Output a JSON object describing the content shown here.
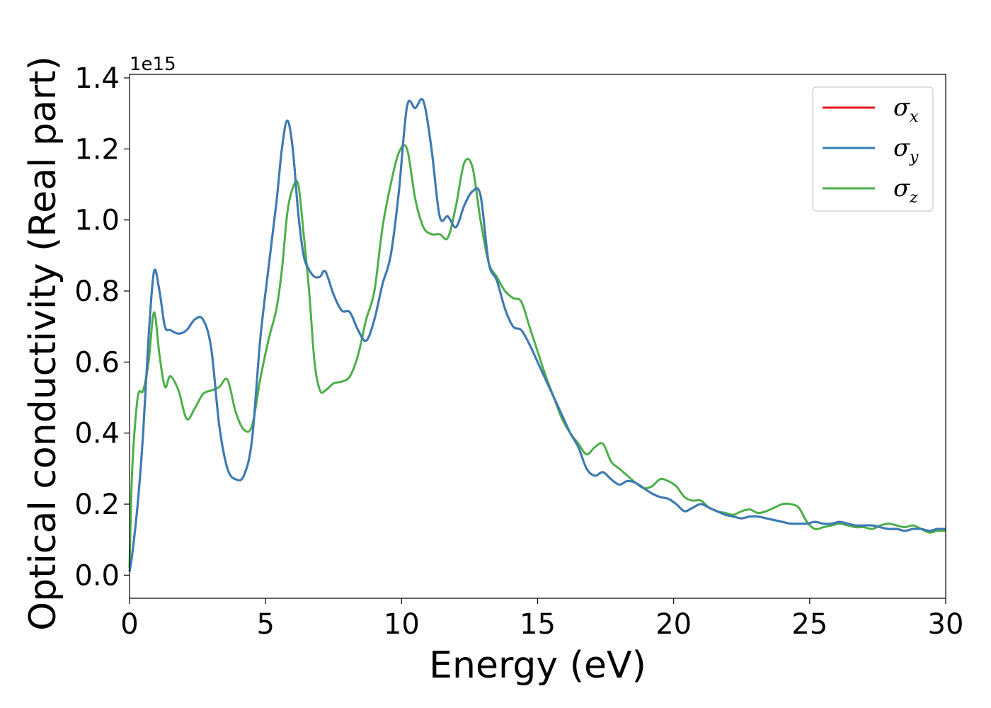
{
  "chart_data": {
    "type": "line",
    "xlabel": "Energy (eV)",
    "ylabel": "Optical conductivity (Real part)",
    "y_offset_label": "1e15",
    "y_scale": 1000000000000000.0,
    "xlim": [
      0,
      30
    ],
    "ylim": [
      -0.065,
      1.41
    ],
    "x_ticks": [
      0,
      5,
      10,
      15,
      20,
      25,
      30
    ],
    "x_tick_labels": [
      "0",
      "5",
      "10",
      "15",
      "20",
      "25",
      "30"
    ],
    "y_ticks": [
      0.0,
      0.2,
      0.4,
      0.6,
      0.8,
      1.0,
      1.2,
      1.4
    ],
    "y_tick_labels": [
      "0.0",
      "0.2",
      "0.4",
      "0.6",
      "0.8",
      "1.0",
      "1.2",
      "1.4"
    ],
    "grid": false,
    "legend_position": "top-right",
    "legend": [
      {
        "symbol": "σ",
        "sub": "x"
      },
      {
        "symbol": "σ",
        "sub": "y"
      },
      {
        "symbol": "σ",
        "sub": "z"
      }
    ],
    "series": [
      {
        "color": "#e41a1c",
        "x": [
          0,
          0.1,
          0.3,
          0.5,
          0.7,
          0.9,
          1.1,
          1.3,
          1.5,
          1.8,
          2.1,
          2.4,
          2.7,
          3.0,
          3.3,
          3.6,
          3.9,
          4.2,
          4.5,
          4.8,
          5.1,
          5.4,
          5.6,
          5.8,
          6.0,
          6.2,
          6.4,
          6.6,
          6.8,
          7.0,
          7.2,
          7.5,
          7.8,
          8.1,
          8.4,
          8.7,
          9.0,
          9.3,
          9.6,
          9.9,
          10.2,
          10.5,
          10.8,
          11.1,
          11.4,
          11.7,
          12.0,
          12.3,
          12.6,
          12.9,
          13.2,
          13.5,
          13.8,
          14.1,
          14.4,
          14.7,
          15.0,
          15.3,
          15.6,
          15.9,
          16.2,
          16.5,
          16.8,
          17.1,
          17.4,
          17.7,
          18.0,
          18.3,
          18.6,
          18.9,
          19.2,
          19.5,
          19.8,
          20.1,
          20.4,
          20.7,
          21.0,
          21.3,
          21.6,
          21.9,
          22.2,
          22.5,
          22.8,
          23.1,
          23.4,
          23.7,
          24.0,
          24.3,
          24.6,
          24.9,
          25.2,
          25.5,
          25.8,
          26.1,
          26.4,
          26.7,
          27.0,
          27.3,
          27.6,
          27.9,
          28.2,
          28.5,
          28.8,
          29.1,
          29.4,
          29.7,
          30.0
        ],
        "y": [
          0.01,
          0.06,
          0.2,
          0.4,
          0.67,
          0.855,
          0.8,
          0.7,
          0.69,
          0.68,
          0.69,
          0.72,
          0.72,
          0.64,
          0.42,
          0.3,
          0.27,
          0.28,
          0.38,
          0.66,
          0.86,
          1.05,
          1.2,
          1.28,
          1.2,
          1.02,
          0.9,
          0.86,
          0.84,
          0.84,
          0.855,
          0.79,
          0.745,
          0.74,
          0.69,
          0.66,
          0.72,
          0.82,
          0.9,
          1.08,
          1.32,
          1.315,
          1.335,
          1.2,
          1.01,
          1.01,
          0.98,
          1.04,
          1.08,
          1.07,
          0.88,
          0.83,
          0.75,
          0.7,
          0.69,
          0.65,
          0.6,
          0.55,
          0.5,
          0.45,
          0.4,
          0.36,
          0.3,
          0.28,
          0.29,
          0.27,
          0.255,
          0.265,
          0.26,
          0.245,
          0.23,
          0.22,
          0.215,
          0.2,
          0.18,
          0.19,
          0.2,
          0.19,
          0.18,
          0.17,
          0.165,
          0.16,
          0.165,
          0.165,
          0.16,
          0.155,
          0.15,
          0.145,
          0.145,
          0.145,
          0.15,
          0.145,
          0.145,
          0.15,
          0.145,
          0.14,
          0.14,
          0.14,
          0.135,
          0.13,
          0.13,
          0.125,
          0.13,
          0.13,
          0.125,
          0.13,
          0.13
        ]
      },
      {
        "color": "#377eb8",
        "x": [
          0,
          0.1,
          0.3,
          0.5,
          0.7,
          0.9,
          1.1,
          1.3,
          1.5,
          1.8,
          2.1,
          2.4,
          2.7,
          3.0,
          3.3,
          3.6,
          3.9,
          4.2,
          4.5,
          4.8,
          5.1,
          5.4,
          5.6,
          5.8,
          6.0,
          6.2,
          6.4,
          6.6,
          6.8,
          7.0,
          7.2,
          7.5,
          7.8,
          8.1,
          8.4,
          8.7,
          9.0,
          9.3,
          9.6,
          9.9,
          10.2,
          10.5,
          10.8,
          11.1,
          11.4,
          11.7,
          12.0,
          12.3,
          12.6,
          12.9,
          13.2,
          13.5,
          13.8,
          14.1,
          14.4,
          14.7,
          15.0,
          15.3,
          15.6,
          15.9,
          16.2,
          16.5,
          16.8,
          17.1,
          17.4,
          17.7,
          18.0,
          18.3,
          18.6,
          18.9,
          19.2,
          19.5,
          19.8,
          20.1,
          20.4,
          20.7,
          21.0,
          21.3,
          21.6,
          21.9,
          22.2,
          22.5,
          22.8,
          23.1,
          23.4,
          23.7,
          24.0,
          24.3,
          24.6,
          24.9,
          25.2,
          25.5,
          25.8,
          26.1,
          26.4,
          26.7,
          27.0,
          27.3,
          27.6,
          27.9,
          28.2,
          28.5,
          28.8,
          29.1,
          29.4,
          29.7,
          30.0
        ],
        "y": [
          0.01,
          0.06,
          0.2,
          0.4,
          0.67,
          0.855,
          0.8,
          0.7,
          0.69,
          0.68,
          0.69,
          0.72,
          0.72,
          0.64,
          0.42,
          0.3,
          0.27,
          0.28,
          0.38,
          0.66,
          0.86,
          1.05,
          1.2,
          1.28,
          1.2,
          1.02,
          0.9,
          0.86,
          0.84,
          0.84,
          0.855,
          0.79,
          0.745,
          0.74,
          0.69,
          0.66,
          0.72,
          0.82,
          0.9,
          1.08,
          1.32,
          1.315,
          1.335,
          1.2,
          1.01,
          1.01,
          0.98,
          1.04,
          1.08,
          1.07,
          0.88,
          0.83,
          0.75,
          0.7,
          0.69,
          0.65,
          0.6,
          0.55,
          0.5,
          0.45,
          0.4,
          0.36,
          0.3,
          0.28,
          0.29,
          0.27,
          0.255,
          0.265,
          0.26,
          0.245,
          0.23,
          0.22,
          0.215,
          0.2,
          0.18,
          0.19,
          0.2,
          0.19,
          0.18,
          0.17,
          0.165,
          0.16,
          0.165,
          0.165,
          0.16,
          0.155,
          0.15,
          0.145,
          0.145,
          0.145,
          0.15,
          0.145,
          0.145,
          0.15,
          0.145,
          0.14,
          0.14,
          0.14,
          0.135,
          0.13,
          0.13,
          0.125,
          0.13,
          0.13,
          0.125,
          0.13,
          0.13
        ]
      },
      {
        "color": "#4daf4a",
        "x": [
          0,
          0.1,
          0.3,
          0.5,
          0.7,
          0.9,
          1.1,
          1.3,
          1.5,
          1.8,
          2.1,
          2.4,
          2.7,
          3.0,
          3.3,
          3.6,
          3.9,
          4.2,
          4.5,
          4.8,
          5.1,
          5.4,
          5.6,
          5.8,
          6.0,
          6.2,
          6.4,
          6.6,
          6.8,
          7.0,
          7.2,
          7.5,
          7.8,
          8.1,
          8.4,
          8.7,
          9.0,
          9.3,
          9.6,
          9.9,
          10.2,
          10.5,
          10.8,
          11.1,
          11.4,
          11.7,
          12.0,
          12.3,
          12.6,
          12.9,
          13.2,
          13.5,
          13.8,
          14.1,
          14.4,
          14.7,
          15.0,
          15.3,
          15.6,
          15.9,
          16.2,
          16.5,
          16.8,
          17.1,
          17.4,
          17.7,
          18.0,
          18.3,
          18.6,
          18.9,
          19.2,
          19.5,
          19.8,
          20.1,
          20.4,
          20.7,
          21.0,
          21.3,
          21.6,
          21.9,
          22.2,
          22.5,
          22.8,
          23.1,
          23.4,
          23.7,
          24.0,
          24.3,
          24.6,
          24.9,
          25.2,
          25.5,
          25.8,
          26.1,
          26.4,
          26.7,
          27.0,
          27.3,
          27.6,
          27.9,
          28.2,
          28.5,
          28.8,
          29.1,
          29.4,
          29.7,
          30.0
        ],
        "y": [
          0.02,
          0.3,
          0.5,
          0.52,
          0.6,
          0.74,
          0.62,
          0.53,
          0.56,
          0.52,
          0.44,
          0.47,
          0.51,
          0.52,
          0.53,
          0.55,
          0.46,
          0.41,
          0.42,
          0.55,
          0.66,
          0.75,
          0.86,
          1.02,
          1.09,
          1.1,
          0.96,
          0.8,
          0.6,
          0.52,
          0.52,
          0.54,
          0.545,
          0.56,
          0.62,
          0.72,
          0.8,
          0.98,
          1.1,
          1.19,
          1.2,
          1.06,
          0.98,
          0.96,
          0.96,
          0.95,
          1.04,
          1.16,
          1.15,
          1.0,
          0.88,
          0.84,
          0.8,
          0.78,
          0.77,
          0.7,
          0.63,
          0.56,
          0.5,
          0.44,
          0.4,
          0.37,
          0.34,
          0.36,
          0.37,
          0.32,
          0.3,
          0.28,
          0.26,
          0.245,
          0.25,
          0.27,
          0.265,
          0.25,
          0.22,
          0.21,
          0.21,
          0.19,
          0.18,
          0.175,
          0.17,
          0.18,
          0.185,
          0.175,
          0.18,
          0.19,
          0.2,
          0.2,
          0.19,
          0.15,
          0.13,
          0.135,
          0.14,
          0.145,
          0.14,
          0.135,
          0.135,
          0.13,
          0.14,
          0.145,
          0.14,
          0.135,
          0.14,
          0.13,
          0.12,
          0.125,
          0.125
        ]
      }
    ]
  }
}
